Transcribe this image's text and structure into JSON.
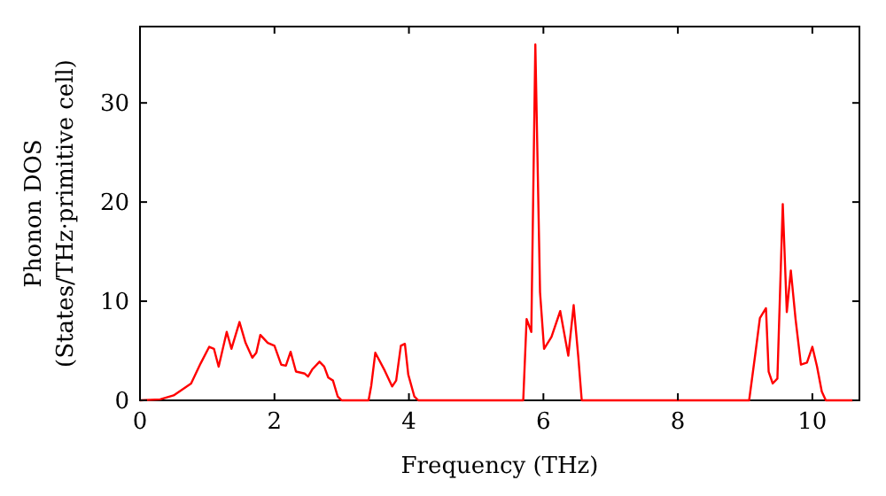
{
  "chart_data": {
    "type": "line",
    "xlabel": "Frequency (THz)",
    "ylabel": "Phonon DOS\n(States/THz·primitive cell)",
    "xlim": [
      0,
      10.7
    ],
    "ylim": [
      0,
      37.7
    ],
    "xticks": [
      0,
      2,
      4,
      6,
      8,
      10
    ],
    "yticks": [
      0,
      10,
      20,
      30
    ],
    "grid": false,
    "marker": "none",
    "line_style": "solid",
    "series": [
      {
        "color": "#ff0000",
        "x": [
          0,
          0.3,
          0.5,
          0.76,
          0.9,
          1.03,
          1.1,
          1.17,
          1.29,
          1.36,
          1.48,
          1.57,
          1.67,
          1.73,
          1.79,
          1.9,
          2.0,
          2.1,
          2.17,
          2.24,
          2.32,
          2.45,
          2.5,
          2.56,
          2.67,
          2.74,
          2.8,
          2.87,
          2.94,
          3.0,
          3.4,
          3.44,
          3.5,
          3.64,
          3.75,
          3.81,
          3.88,
          3.94,
          3.99,
          4.08,
          4.14,
          5.7,
          5.75,
          5.82,
          5.88,
          5.95,
          6.01,
          6.12,
          6.25,
          6.37,
          6.45,
          6.52,
          6.57,
          9.06,
          9.15,
          9.22,
          9.31,
          9.35,
          9.41,
          9.48,
          9.56,
          9.62,
          9.68,
          9.75,
          9.83,
          9.92,
          10.0,
          10.07,
          10.14,
          10.2,
          10.6
        ],
        "values": [
          0,
          0.1,
          0.5,
          1.7,
          3.7,
          5.4,
          5.2,
          3.4,
          6.9,
          5.2,
          7.9,
          5.8,
          4.3,
          4.8,
          6.6,
          5.8,
          5.5,
          3.6,
          3.5,
          4.9,
          2.9,
          2.7,
          2.4,
          3.1,
          3.9,
          3.4,
          2.3,
          2.0,
          0.4,
          0,
          0,
          1.5,
          4.8,
          3.0,
          1.4,
          2.0,
          5.5,
          5.7,
          2.6,
          0.4,
          0,
          0,
          8.2,
          6.9,
          35.9,
          10.9,
          5.2,
          6.4,
          9.0,
          4.5,
          9.6,
          4.3,
          0,
          0,
          4.6,
          8.3,
          9.3,
          2.9,
          1.7,
          2.2,
          19.8,
          8.9,
          13.1,
          8.2,
          3.6,
          3.8,
          5.4,
          3.4,
          0.9,
          0,
          0
        ]
      }
    ]
  }
}
